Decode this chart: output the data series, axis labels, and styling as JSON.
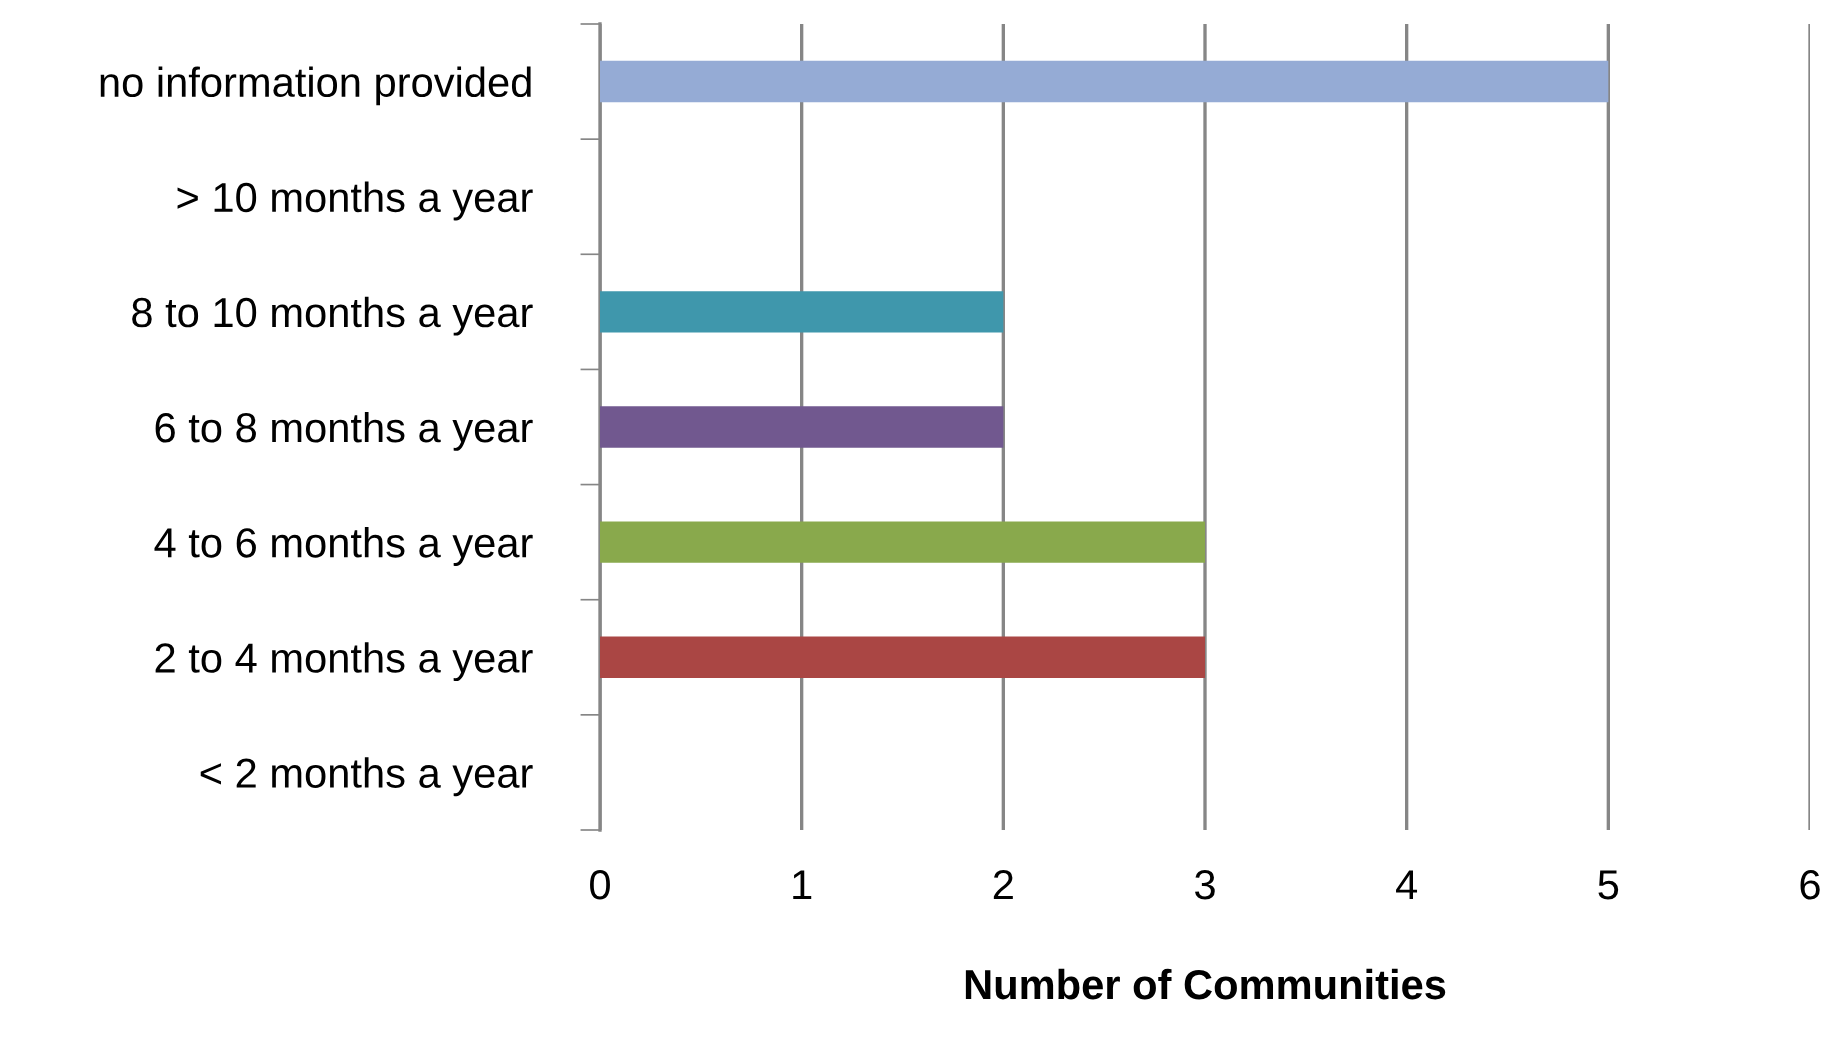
{
  "chart_data": {
    "type": "bar",
    "orientation": "horizontal",
    "xlabel": "Number of Communities",
    "categories": [
      "no information provided",
      "> 10 months a year",
      "8 to 10 months a year",
      "6 to 8 months a year",
      "4 to 6 months a year",
      "2 to 4 months a year",
      "< 2 months a year"
    ],
    "values": [
      5,
      0,
      2,
      2,
      3,
      3,
      0
    ],
    "colors": [
      "#95abd5",
      "#f79646",
      "#3f97ac",
      "#71588f",
      "#89a94c",
      "#aa4644",
      "#4f81bd"
    ],
    "xlim": [
      0,
      6
    ],
    "xticks": [
      0,
      1,
      2,
      3,
      4,
      5,
      6
    ],
    "grid": "x",
    "legend": false
  }
}
